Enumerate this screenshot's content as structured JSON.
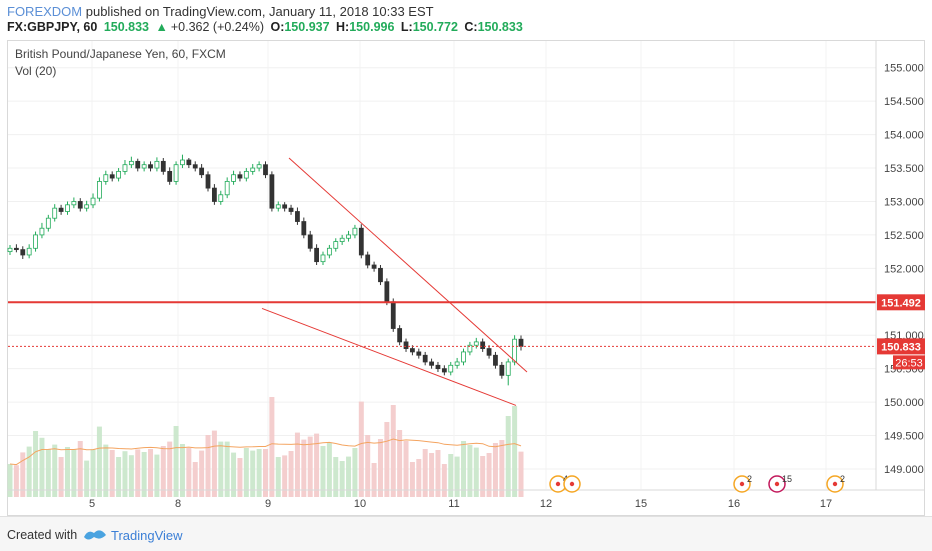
{
  "header": {
    "author": "FOREXDOM",
    "published_text": " published on TradingView.com, January 11, 2018 10:33 EST",
    "symbol": "FX:GBPJPY, 60",
    "last": "150.833",
    "change_arrow": "▲",
    "change": "+0.362 (+0.24%)",
    "o_label": "O:",
    "o_value": "150.937",
    "h_label": "H:",
    "h_value": "150.996",
    "l_label": "L:",
    "l_value": "150.772",
    "c_label": "C:",
    "c_value": "150.833"
  },
  "legend": {
    "title": "British Pound/Japanese Yen, 60, FXCM",
    "volume": "Vol (20)"
  },
  "footer": {
    "created_with": "Created with",
    "brand": "TradingView"
  },
  "colors": {
    "up": "#22ab5a",
    "down": "#333333",
    "trendline": "#e53935",
    "resistance": "#e53935",
    "price_line": "#e53935",
    "volume_up": "#c8e6c9",
    "volume_down": "#f3c9c9",
    "volume_ma": "#f4a460"
  },
  "chart_data": {
    "type": "candlestick",
    "y_axis": {
      "ticks": [
        "155.000",
        "154.500",
        "154.000",
        "153.500",
        "153.000",
        "152.500",
        "152.000",
        "151.500",
        "151.000",
        "150.500",
        "150.000",
        "149.500",
        "149.000"
      ],
      "ylim": [
        148.7,
        155.4
      ]
    },
    "x_axis": {
      "ticks": [
        "5",
        "8",
        "9",
        "10",
        "11",
        "12",
        "15",
        "16",
        "17"
      ]
    },
    "price_labels": {
      "resistance": "151.492",
      "current": "150.833",
      "countdown": "26:53"
    },
    "levels": {
      "resistance": 151.492,
      "current": 150.833
    },
    "trendlines": [
      {
        "start": {
          "day": "9",
          "price": 153.65
        },
        "end": {
          "day": "11",
          "price": 150.45
        }
      },
      {
        "start": {
          "day": "8",
          "price": 151.4
        },
        "end": {
          "day": "11",
          "price": 149.95
        }
      }
    ],
    "events": [
      {
        "day": "12",
        "count": "4"
      },
      {
        "day": "16",
        "count": "2"
      },
      {
        "day": "16",
        "count": "15"
      },
      {
        "day": "17",
        "count": "2"
      }
    ],
    "candles": {
      "open": [
        152.25,
        152.3,
        152.28,
        152.2,
        152.3,
        152.5,
        152.6,
        152.75,
        152.9,
        152.85,
        152.95,
        153.0,
        152.9,
        152.95,
        153.05,
        153.3,
        153.4,
        153.35,
        153.45,
        153.55,
        153.6,
        153.5,
        153.55,
        153.5,
        153.6,
        153.45,
        153.3,
        153.55,
        153.62,
        153.55,
        153.5,
        153.4,
        153.2,
        153.0,
        153.1,
        153.3,
        153.4,
        153.35,
        153.45,
        153.5,
        153.55,
        153.4,
        152.9,
        152.95,
        152.9,
        152.85,
        152.7,
        152.5,
        152.3,
        152.1,
        152.2,
        152.3,
        152.4,
        152.45,
        152.5,
        152.6,
        152.2,
        152.05,
        152.0,
        151.8,
        151.5,
        151.1,
        150.9,
        150.8,
        150.75,
        150.7,
        150.6,
        150.55,
        150.5,
        150.45,
        150.55,
        150.6,
        150.75,
        150.85,
        150.9,
        150.8,
        150.7,
        150.55,
        150.4,
        150.6,
        150.94
      ],
      "close": [
        152.3,
        152.28,
        152.2,
        152.3,
        152.5,
        152.6,
        152.75,
        152.9,
        152.85,
        152.95,
        153.0,
        152.9,
        152.95,
        153.05,
        153.3,
        153.4,
        153.35,
        153.45,
        153.55,
        153.6,
        153.5,
        153.55,
        153.5,
        153.6,
        153.45,
        153.3,
        153.55,
        153.62,
        153.55,
        153.5,
        153.4,
        153.2,
        153.0,
        153.1,
        153.3,
        153.4,
        153.35,
        153.45,
        153.5,
        153.55,
        153.4,
        152.9,
        152.95,
        152.9,
        152.85,
        152.7,
        152.5,
        152.3,
        152.1,
        152.2,
        152.3,
        152.4,
        152.45,
        152.5,
        152.6,
        152.2,
        152.05,
        152.0,
        151.8,
        151.5,
        151.1,
        150.9,
        150.8,
        150.75,
        150.7,
        150.6,
        150.55,
        150.5,
        150.45,
        150.55,
        150.6,
        150.75,
        150.85,
        150.9,
        150.8,
        150.7,
        150.55,
        150.4,
        150.6,
        150.94,
        150.833
      ],
      "high": [
        152.35,
        152.36,
        152.33,
        152.36,
        152.55,
        152.68,
        152.8,
        152.96,
        152.95,
        153.0,
        153.06,
        153.05,
        153.01,
        153.12,
        153.36,
        153.46,
        153.45,
        153.5,
        153.62,
        153.67,
        153.64,
        153.6,
        153.6,
        153.66,
        153.65,
        153.51,
        153.6,
        153.7,
        153.65,
        153.6,
        153.56,
        153.45,
        153.26,
        153.16,
        153.36,
        153.46,
        153.45,
        153.5,
        153.56,
        153.6,
        153.6,
        153.45,
        153.0,
        152.99,
        152.95,
        152.91,
        152.76,
        152.56,
        152.36,
        152.25,
        152.35,
        152.45,
        152.5,
        152.56,
        152.65,
        152.66,
        152.25,
        152.1,
        152.05,
        151.85,
        151.55,
        151.15,
        150.95,
        150.85,
        150.8,
        150.75,
        150.65,
        150.6,
        150.55,
        150.6,
        150.66,
        150.8,
        150.9,
        150.96,
        150.95,
        150.85,
        150.75,
        150.6,
        150.65,
        151.0,
        150.996
      ],
      "low": [
        152.2,
        152.24,
        152.14,
        152.15,
        152.25,
        152.45,
        152.55,
        152.7,
        152.8,
        152.8,
        152.9,
        152.85,
        152.85,
        152.9,
        153.0,
        153.25,
        153.3,
        153.3,
        153.4,
        153.5,
        153.45,
        153.45,
        153.45,
        153.45,
        153.4,
        153.25,
        153.25,
        153.5,
        153.5,
        153.45,
        153.35,
        153.15,
        152.95,
        152.95,
        153.05,
        153.25,
        153.3,
        153.3,
        153.4,
        153.45,
        153.35,
        152.85,
        152.85,
        152.85,
        152.8,
        152.65,
        152.45,
        152.25,
        152.05,
        152.05,
        152.15,
        152.25,
        152.35,
        152.4,
        152.45,
        152.15,
        152.0,
        151.95,
        151.75,
        151.45,
        151.05,
        150.85,
        150.75,
        150.7,
        150.65,
        150.55,
        150.5,
        150.45,
        150.4,
        150.4,
        150.5,
        150.55,
        150.7,
        150.8,
        150.75,
        150.65,
        150.5,
        150.35,
        150.25,
        150.55,
        150.772
      ]
    },
    "volume_ma_period": 20
  }
}
